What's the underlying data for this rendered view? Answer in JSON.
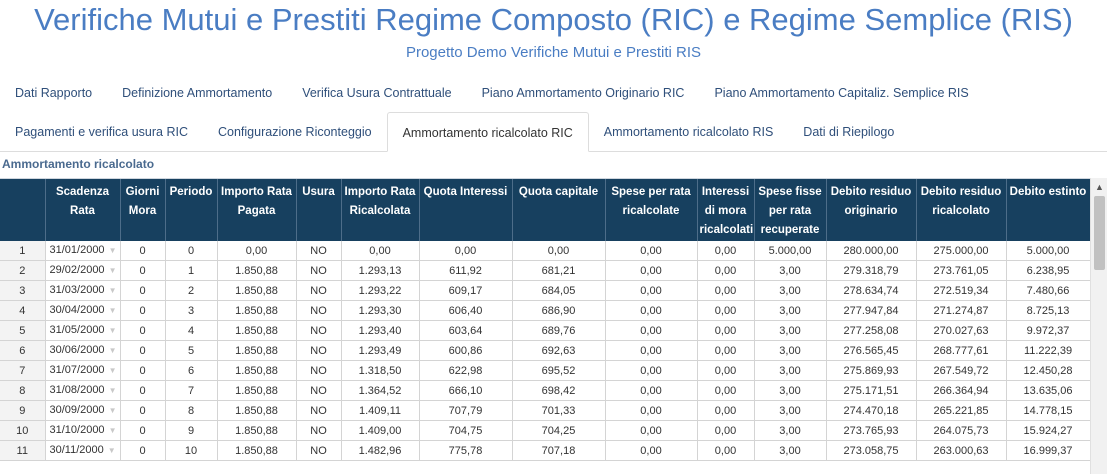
{
  "header": {
    "title": "Verifiche Mutui e Prestiti Regime Composto (RIC) e Regime Semplice (RIS)",
    "subtitle": "Progetto Demo Verifiche Mutui e Prestiti RIS"
  },
  "tabs_row1": [
    "Dati Rapporto",
    "Definizione Ammortamento",
    "Verifica Usura Contrattuale",
    "Piano Ammortamento Originario RIC",
    "Piano Ammortamento Capitaliz. Semplice RIS"
  ],
  "tabs_row2": [
    "Pagamenti e verifica usura RIC",
    "Configurazione Riconteggio",
    "Ammortamento ricalcolato RIC",
    "Ammortamento ricalcolato RIS",
    "Dati di Riepilogo"
  ],
  "active_tab": "Ammortamento ricalcolato RIC",
  "section_label": "Ammortamento ricalcolato",
  "grid": {
    "columns": [
      "",
      "Scadenza Rata",
      "Giorni Mora",
      "Periodo",
      "Importo Rata Pagata",
      "Usura",
      "Importo Rata Ricalcolata",
      "Quota Interessi",
      "Quota capitale",
      "Spese per rata ricalcolate",
      "Interessi di mora ricalcolati",
      "Spese fisse per rata recuperate",
      "Debito residuo originario",
      "Debito residuo ricalcolato",
      "Debito estinto"
    ],
    "rows": [
      [
        "1",
        "31/01/2000",
        "0",
        "0",
        "0,00",
        "NO",
        "0,00",
        "0,00",
        "0,00",
        "0,00",
        "0,00",
        "5.000,00",
        "280.000,00",
        "275.000,00",
        "5.000,00"
      ],
      [
        "2",
        "29/02/2000",
        "0",
        "1",
        "1.850,88",
        "NO",
        "1.293,13",
        "611,92",
        "681,21",
        "0,00",
        "0,00",
        "3,00",
        "279.318,79",
        "273.761,05",
        "6.238,95"
      ],
      [
        "3",
        "31/03/2000",
        "0",
        "2",
        "1.850,88",
        "NO",
        "1.293,22",
        "609,17",
        "684,05",
        "0,00",
        "0,00",
        "3,00",
        "278.634,74",
        "272.519,34",
        "7.480,66"
      ],
      [
        "4",
        "30/04/2000",
        "0",
        "3",
        "1.850,88",
        "NO",
        "1.293,30",
        "606,40",
        "686,90",
        "0,00",
        "0,00",
        "3,00",
        "277.947,84",
        "271.274,87",
        "8.725,13"
      ],
      [
        "5",
        "31/05/2000",
        "0",
        "4",
        "1.850,88",
        "NO",
        "1.293,40",
        "603,64",
        "689,76",
        "0,00",
        "0,00",
        "3,00",
        "277.258,08",
        "270.027,63",
        "9.972,37"
      ],
      [
        "6",
        "30/06/2000",
        "0",
        "5",
        "1.850,88",
        "NO",
        "1.293,49",
        "600,86",
        "692,63",
        "0,00",
        "0,00",
        "3,00",
        "276.565,45",
        "268.777,61",
        "11.222,39"
      ],
      [
        "7",
        "31/07/2000",
        "0",
        "6",
        "1.850,88",
        "NO",
        "1.318,50",
        "622,98",
        "695,52",
        "0,00",
        "0,00",
        "3,00",
        "275.869,93",
        "267.549,72",
        "12.450,28"
      ],
      [
        "8",
        "31/08/2000",
        "0",
        "7",
        "1.850,88",
        "NO",
        "1.364,52",
        "666,10",
        "698,42",
        "0,00",
        "0,00",
        "3,00",
        "275.171,51",
        "266.364,94",
        "13.635,06"
      ],
      [
        "9",
        "30/09/2000",
        "0",
        "8",
        "1.850,88",
        "NO",
        "1.409,11",
        "707,79",
        "701,33",
        "0,00",
        "0,00",
        "3,00",
        "274.470,18",
        "265.221,85",
        "14.778,15"
      ],
      [
        "10",
        "31/10/2000",
        "0",
        "9",
        "1.850,88",
        "NO",
        "1.409,00",
        "704,75",
        "704,25",
        "0,00",
        "0,00",
        "3,00",
        "273.765,93",
        "264.075,73",
        "15.924,27"
      ],
      [
        "11",
        "30/11/2000",
        "0",
        "10",
        "1.850,88",
        "NO",
        "1.482,96",
        "775,78",
        "707,18",
        "0,00",
        "0,00",
        "3,00",
        "273.058,75",
        "263.000,63",
        "16.999,37"
      ]
    ]
  },
  "icons": {
    "date_dropdown": "chevron-down-icon",
    "scroll_up": "arrow-up-icon"
  }
}
